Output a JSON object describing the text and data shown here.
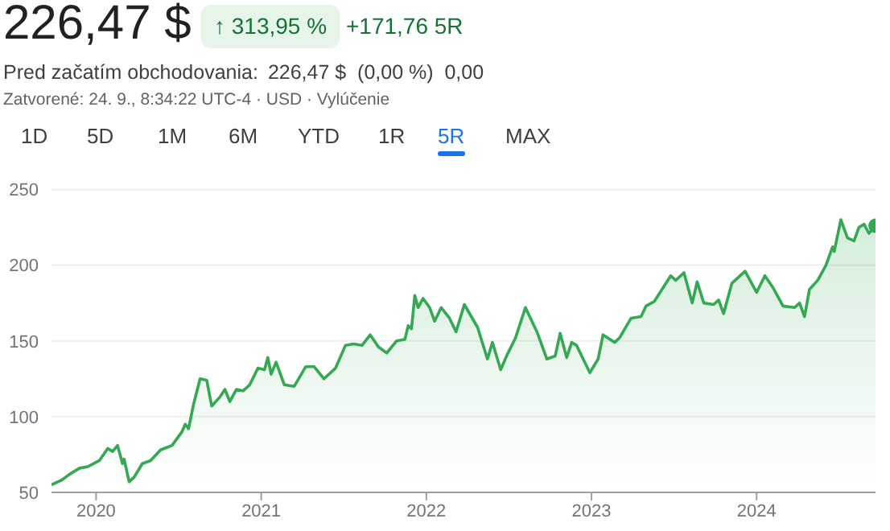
{
  "chart_data": {
    "type": "area",
    "title": "226,47 $",
    "annotations": [
      "↑ 313,95 %",
      "+171,76 5R",
      "Pred začatím obchodovania:",
      "226,47 $  (0,00 %)  0,00",
      "Zatvorené: 24. 9., 8:34:22 UTC-4 · USD · Vylúčenie",
      "1D",
      "5D",
      "1M",
      "6M",
      "YTD",
      "1R",
      "5R",
      "MAX"
    ],
    "series": [
      {
        "color": "#34a853",
        "x": [
          2019.73,
          2019.79,
          2019.84,
          2019.9,
          2019.95,
          2020.02,
          2020.07,
          2020.1,
          2020.13,
          2020.16,
          2020.17,
          2020.2,
          2020.23,
          2020.28,
          2020.33,
          2020.39,
          2020.46,
          2020.52,
          2020.54,
          2020.56,
          2020.59,
          2020.63,
          2020.67,
          2020.7,
          2020.75,
          2020.78,
          2020.81,
          2020.85,
          2020.89,
          2020.93,
          2020.98,
          2021.02,
          2021.04,
          2021.06,
          2021.09,
          2021.14,
          2021.2,
          2021.27,
          2021.32,
          2021.38,
          2021.45,
          2021.51,
          2021.56,
          2021.61,
          2021.66,
          2021.71,
          2021.76,
          2021.82,
          2021.87,
          2021.89,
          2021.91,
          2021.93,
          2021.95,
          2021.98,
          2022.02,
          2022.05,
          2022.09,
          2022.14,
          2022.18,
          2022.23,
          2022.31,
          2022.37,
          2022.4,
          2022.45,
          2022.49,
          2022.54,
          2022.6,
          2022.67,
          2022.73,
          2022.78,
          2022.81,
          2022.85,
          2022.88,
          2022.91,
          2022.99,
          2023.04,
          2023.07,
          2023.14,
          2023.17,
          2023.24,
          2023.3,
          2023.33,
          2023.38,
          2023.48,
          2023.51,
          2023.56,
          2023.61,
          2023.64,
          2023.68,
          2023.74,
          2023.77,
          2023.8,
          2023.85,
          2023.93,
          2024.0,
          2024.05,
          2024.1,
          2024.16,
          2024.23,
          2024.26,
          2024.29,
          2024.32,
          2024.37,
          2024.42,
          2024.46,
          2024.47,
          2024.51,
          2024.55,
          2024.59,
          2024.62,
          2024.65,
          2024.68,
          2024.72
        ],
        "values": [
          55,
          58,
          62,
          66,
          67,
          71,
          79,
          77,
          81,
          69,
          72,
          57,
          60,
          69,
          71,
          78,
          81,
          90,
          95,
          92,
          108,
          125,
          124,
          107,
          113,
          118,
          110,
          118,
          117,
          121,
          132,
          131,
          139,
          128,
          136,
          121,
          120,
          133,
          133,
          125,
          132,
          147,
          148,
          147,
          154,
          146,
          142,
          150,
          151,
          160,
          158,
          180,
          172,
          178,
          172,
          163,
          172,
          165,
          156,
          174,
          159,
          138,
          149,
          131,
          141,
          152,
          172,
          156,
          138,
          140,
          155,
          139,
          149,
          147,
          129,
          138,
          154,
          149,
          152,
          165,
          166,
          173,
          176,
          193,
          190,
          195,
          175,
          189,
          175,
          174,
          177,
          168,
          188,
          196,
          182,
          193,
          185,
          173,
          172,
          175,
          166,
          184,
          190,
          200,
          212,
          209,
          230,
          218,
          216,
          225,
          227,
          221,
          226
        ]
      }
    ],
    "xlim": [
      2019.73,
      2024.72
    ],
    "xticks": [
      2020,
      2021,
      2022,
      2023,
      2024
    ],
    "ylim": [
      50,
      250
    ],
    "yticks": [
      50,
      100,
      150,
      200,
      250
    ],
    "grid": "y",
    "legend": false
  }
}
